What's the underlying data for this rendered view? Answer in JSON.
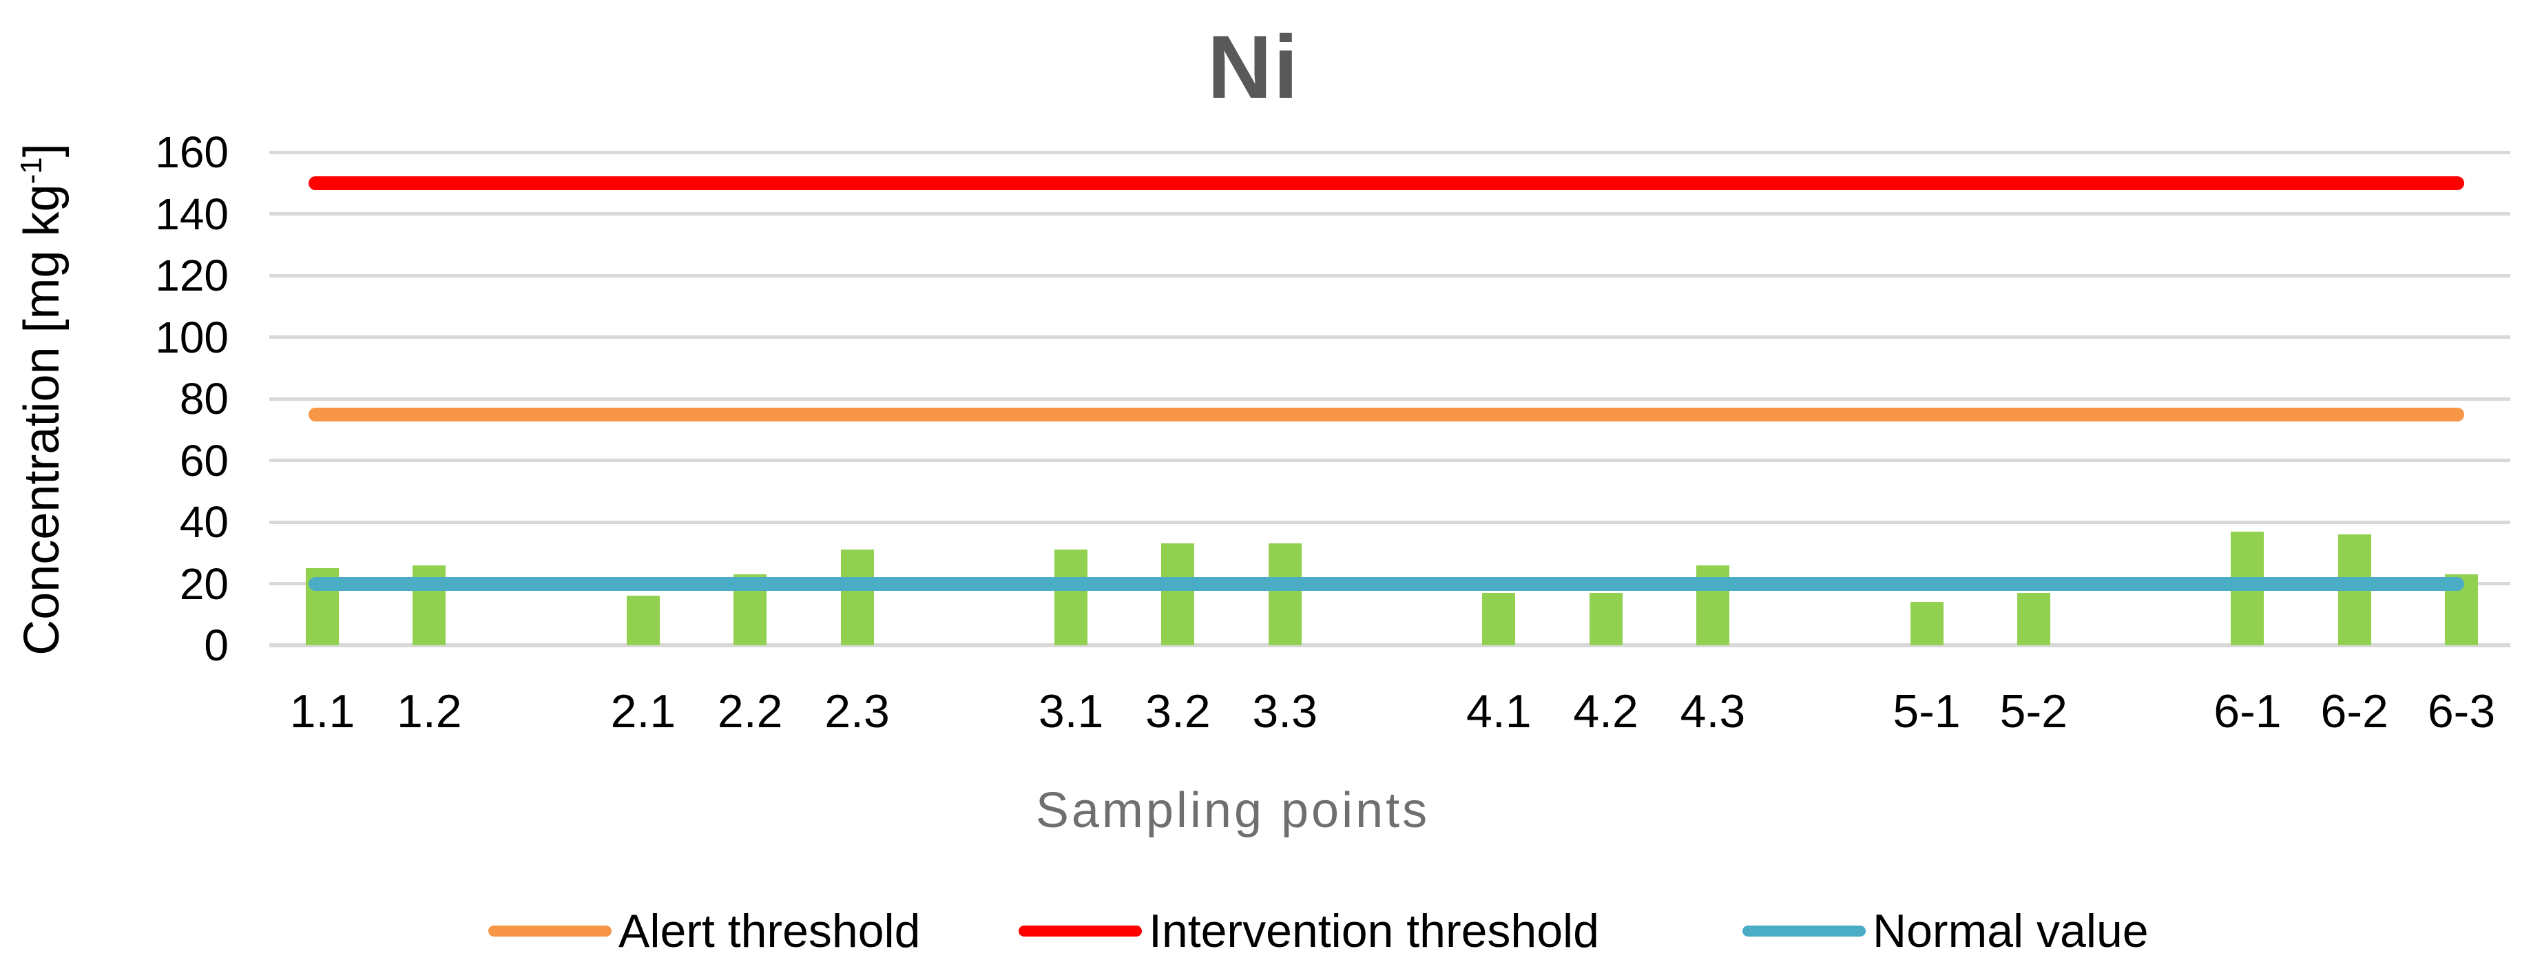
{
  "page": {
    "title": "Ni"
  },
  "axes": {
    "y_title_main": "Concentration [mg kg",
    "y_title_sup": "-1",
    "y_title_close": "]",
    "x_title": "Sampling points"
  },
  "colors": {
    "bar": "#92D050",
    "gridline": "#D9D9D9",
    "title": "#595959",
    "alert": "#F79646",
    "intervention": "#FF0000",
    "normal": "#4BACC6"
  },
  "chart_data": {
    "type": "bar",
    "title": "Ni",
    "xlabel": "Sampling points",
    "ylabel": "Concentration [mg kg⁻¹]",
    "ylim": [
      0,
      160
    ],
    "yticks": [
      0,
      20,
      40,
      60,
      80,
      100,
      120,
      140,
      160
    ],
    "grid": true,
    "legend_position": "bottom",
    "bar_color": "#92D050",
    "categories": [
      "1.1",
      "1.2",
      "2.1",
      "2.2",
      "2.3",
      "3.1",
      "3.2",
      "3.3",
      "4.1",
      "4.2",
      "4.3",
      "5-1",
      "5-2",
      "6-1",
      "6-2",
      "6-3"
    ],
    "values": [
      25,
      26,
      16,
      23,
      31,
      31,
      33,
      33,
      17,
      17,
      26,
      14,
      17,
      37,
      36,
      23
    ],
    "category_slots": [
      0,
      1,
      3,
      4,
      5,
      7,
      8,
      9,
      11,
      12,
      13,
      15,
      16,
      18,
      19,
      20
    ],
    "total_slots": 21,
    "thresholds": [
      {
        "label": "Alert threshold",
        "value": 75,
        "color": "#F79646"
      },
      {
        "label": "Intervention threshold",
        "value": 150,
        "color": "#FF0000"
      },
      {
        "label": "Normal value",
        "value": 20,
        "color": "#4BACC6"
      }
    ]
  }
}
